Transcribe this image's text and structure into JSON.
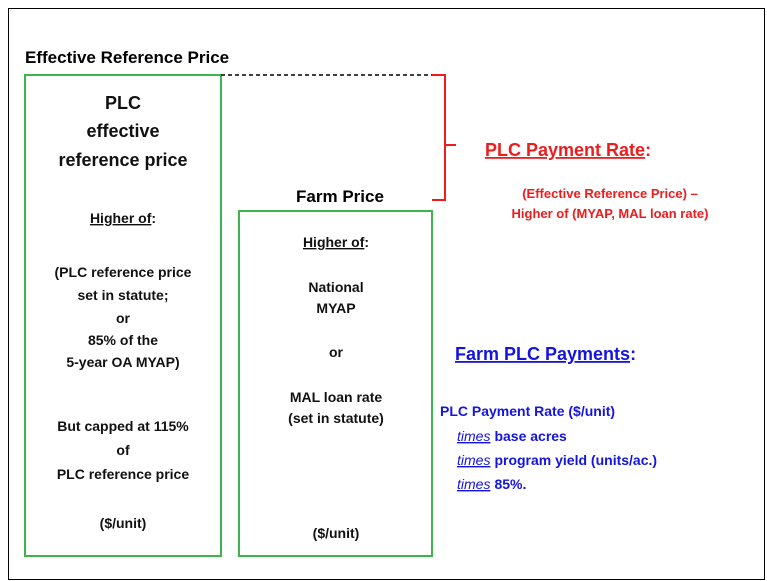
{
  "title": "Effective Reference Price",
  "left_box": {
    "heading": [
      "PLC",
      "effective",
      "reference price"
    ],
    "higher_of": {
      "label": "Higher of",
      "punct": ":"
    },
    "options": [
      "(PLC reference price",
      "set in statute;",
      "or",
      "85% of the",
      "5-year OA MYAP)"
    ],
    "cap": [
      "But capped at 115%",
      "of",
      "PLC reference price"
    ],
    "unit": "($/unit)"
  },
  "farm_price": {
    "heading": "Farm Price",
    "higher_of": {
      "label": "Higher of",
      "punct": ":"
    },
    "options": [
      "National",
      "MYAP",
      "or",
      "MAL loan rate",
      "(set in statute)"
    ],
    "unit": "($/unit)"
  },
  "payment_rate": {
    "heading": {
      "label": "PLC Payment Rate",
      "punct": ":"
    },
    "formula": [
      "(Effective Reference Price) –",
      "Higher of (MYAP, MAL loan rate)"
    ]
  },
  "farm_payments": {
    "heading": {
      "label": "Farm PLC Payments",
      "punct": ":"
    },
    "first": "PLC Payment Rate ($/unit)",
    "terms": [
      {
        "emphasis": "times",
        "text": "base acres"
      },
      {
        "emphasis": "times",
        "text": "program yield (units/ac.)"
      },
      {
        "emphasis": "times",
        "text": "85%."
      }
    ]
  }
}
